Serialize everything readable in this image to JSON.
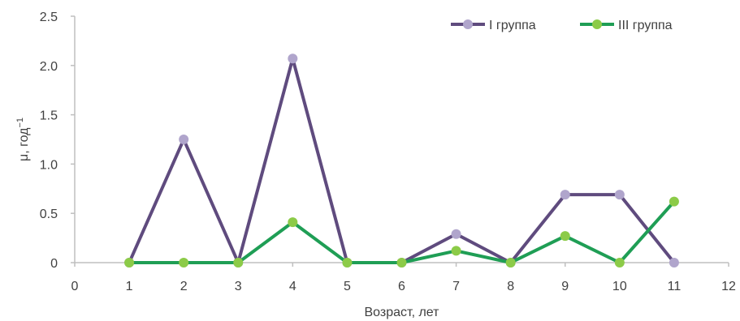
{
  "chart_data": {
    "type": "line",
    "xlabel": "Возраст, лет",
    "ylabel": "μ, год",
    "ylabel_superscript": "−1",
    "xlim": [
      0,
      12
    ],
    "ylim": [
      0,
      2.5
    ],
    "x_ticks": [
      "0",
      "1",
      "2",
      "3",
      "4",
      "5",
      "6",
      "7",
      "8",
      "9",
      "10",
      "11",
      "12"
    ],
    "y_ticks": [
      "0",
      "0.5",
      "1.0",
      "1.5",
      "2.0",
      "2.5"
    ],
    "grid": false,
    "legend_position": "top-right",
    "x": [
      1,
      2,
      3,
      4,
      5,
      6,
      7,
      8,
      9,
      10,
      11
    ],
    "series": [
      {
        "name": "I группа",
        "color": "#5f4b7e",
        "marker_color": "#b0a5cc",
        "values": [
          0,
          1.25,
          0,
          2.07,
          0,
          0,
          0.29,
          0,
          0.69,
          0.69,
          0
        ]
      },
      {
        "name": "III группа",
        "color": "#1f9e55",
        "marker_color": "#8ccb48",
        "values": [
          0,
          0,
          0,
          0.41,
          0,
          0,
          0.12,
          0,
          0.27,
          0,
          0.62
        ]
      }
    ]
  }
}
